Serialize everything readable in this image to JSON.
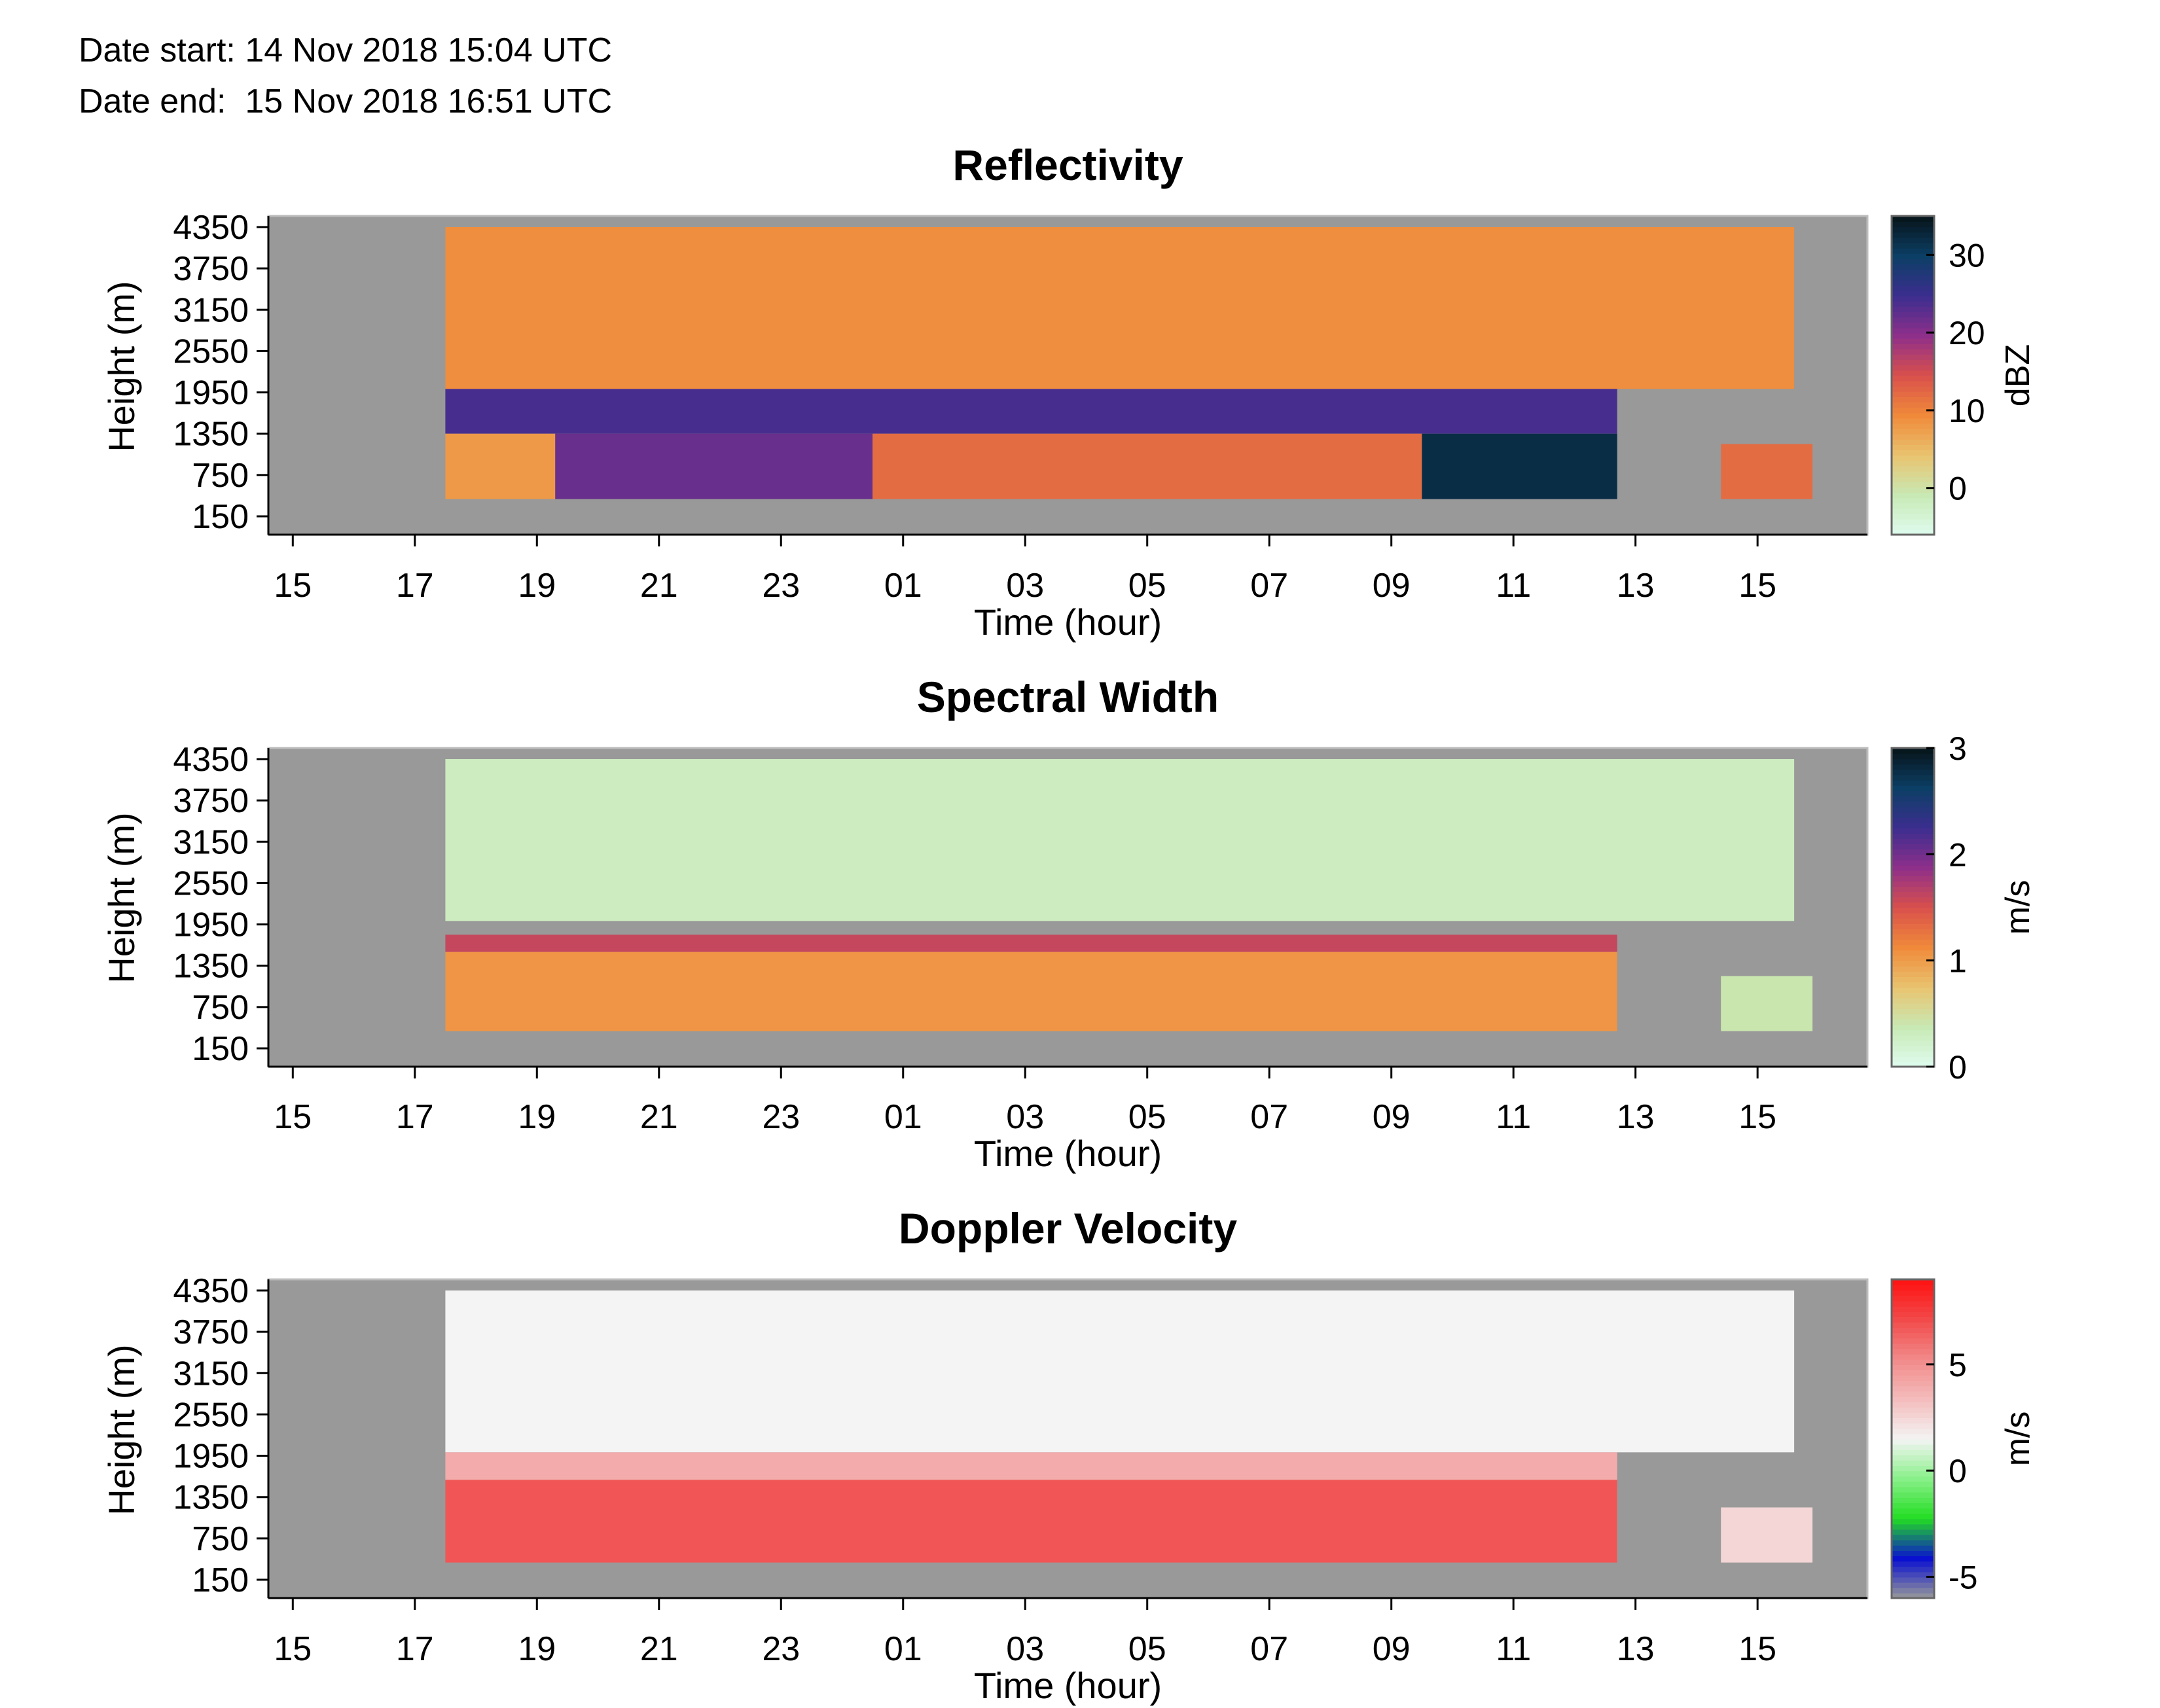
{
  "header": {
    "date_start": "Date start: 14 Nov 2018 15:04 UTC",
    "date_end": "Date end:  15 Nov 2018 16:51 UTC"
  },
  "chart_data": [
    {
      "type": "heatmap",
      "title": "Reflectivity",
      "xlabel": "Time (hour)",
      "ylabel": "Height (m)",
      "x_tick_labels": [
        "15",
        "17",
        "19",
        "21",
        "23",
        "01",
        "03",
        "05",
        "07",
        "09",
        "11",
        "13",
        "15"
      ],
      "y_tick_labels": [
        "4350",
        "3750",
        "3150",
        "2550",
        "1950",
        "1350",
        "750",
        "150"
      ],
      "x_range_hours_since_first_tick": [
        -0.4,
        25.8
      ],
      "ylim": [
        150,
        4350
      ],
      "colorbar": {
        "label": "dBZ",
        "ticks": [
          "30",
          "20",
          "10",
          "0"
        ],
        "tick_values": [
          30,
          20,
          10,
          0
        ],
        "range": [
          -6,
          35
        ],
        "colormap": [
          "#dffcef",
          "#c8e9b4",
          "#e9c36f",
          "#f08a3a",
          "#d9504c",
          "#8e2f8a",
          "#3b2e8f",
          "#0c3f66",
          "#071419"
        ]
      },
      "regions": [
        {
          "name": "echo-upper",
          "x_from": 17.5,
          "x_to": 39.6,
          "y_from": 2000,
          "y_to": 4350,
          "value_dbz": 9
        },
        {
          "name": "echo-mid",
          "x_from": 17.5,
          "x_to": 36.7,
          "y_from": 1350,
          "y_to": 2000,
          "value_dbz": 24
        },
        {
          "name": "echo-low-west",
          "x_from": 17.5,
          "x_to": 19.3,
          "y_from": 400,
          "y_to": 1350,
          "value_dbz": 8
        },
        {
          "name": "echo-low-core",
          "x_from": 19.3,
          "x_to": 24.5,
          "y_from": 400,
          "y_to": 1350,
          "value_dbz": 22
        },
        {
          "name": "echo-low-center",
          "x_from": 24.5,
          "x_to": 33.5,
          "y_from": 400,
          "y_to": 1350,
          "value_dbz": 12
        },
        {
          "name": "echo-low-max",
          "x_from": 33.5,
          "x_to": 36.7,
          "y_from": 400,
          "y_to": 1350,
          "value_dbz": 32
        },
        {
          "name": "echo-tail",
          "x_from": 38.4,
          "x_to": 39.9,
          "y_from": 400,
          "y_to": 1200,
          "value_dbz": 12
        }
      ]
    },
    {
      "type": "heatmap",
      "title": "Spectral Width",
      "xlabel": "Time (hour)",
      "ylabel": "Height (m)",
      "x_tick_labels": [
        "15",
        "17",
        "19",
        "21",
        "23",
        "01",
        "03",
        "05",
        "07",
        "09",
        "11",
        "13",
        "15"
      ],
      "y_tick_labels": [
        "4350",
        "3750",
        "3150",
        "2550",
        "1950",
        "1350",
        "750",
        "150"
      ],
      "x_range_hours_since_first_tick": [
        -0.4,
        25.8
      ],
      "ylim": [
        150,
        4350
      ],
      "colorbar": {
        "label": "m/s",
        "ticks": [
          "3",
          "2",
          "1",
          "0"
        ],
        "tick_values": [
          3,
          2,
          1,
          0
        ],
        "range": [
          0,
          3
        ],
        "colormap": [
          "#dffcef",
          "#c8e9b4",
          "#e9c36f",
          "#f08a3a",
          "#d9504c",
          "#8e2f8a",
          "#3b2e8f",
          "#0c3f66",
          "#071419"
        ]
      },
      "regions": [
        {
          "name": "width-upper",
          "x_from": 17.5,
          "x_to": 39.6,
          "y_from": 2000,
          "y_to": 4350,
          "value_ms": 0.3
        },
        {
          "name": "width-band",
          "x_from": 17.5,
          "x_to": 36.7,
          "y_from": 1550,
          "y_to": 1800,
          "value_ms": 1.6
        },
        {
          "name": "width-low",
          "x_from": 17.5,
          "x_to": 36.7,
          "y_from": 400,
          "y_to": 1550,
          "value_ms": 1.05
        },
        {
          "name": "width-tail",
          "x_from": 38.4,
          "x_to": 39.9,
          "y_from": 400,
          "y_to": 1200,
          "value_ms": 0.4
        }
      ]
    },
    {
      "type": "heatmap",
      "title": "Doppler Velocity",
      "xlabel": "Time (hour)",
      "ylabel": "Height (m)",
      "x_tick_labels": [
        "15",
        "17",
        "19",
        "21",
        "23",
        "01",
        "03",
        "05",
        "07",
        "09",
        "11",
        "13",
        "15"
      ],
      "y_tick_labels": [
        "4350",
        "3750",
        "3150",
        "2550",
        "1950",
        "1350",
        "750",
        "150"
      ],
      "x_range_hours_since_first_tick": [
        -0.4,
        25.8
      ],
      "ylim": [
        150,
        4350
      ],
      "colorbar": {
        "label": "m/s",
        "ticks": [
          "5",
          "0",
          "-5"
        ],
        "tick_values": [
          5,
          0,
          -5
        ],
        "range": [
          -6,
          9
        ],
        "colormap": [
          "#999999",
          "#0a10d0",
          "#22dd22",
          "#88f088",
          "#f4f4f4",
          "#f4bcbc",
          "#f28a8a",
          "#f24a4a",
          "#ff1111"
        ]
      },
      "regions": [
        {
          "name": "velocity-upper",
          "x_from": 17.5,
          "x_to": 39.6,
          "y_from": 2000,
          "y_to": 4350,
          "value_ms": 1.5
        },
        {
          "name": "velocity-mid",
          "x_from": 17.5,
          "x_to": 36.7,
          "y_from": 1600,
          "y_to": 2000,
          "value_ms": 4.0
        },
        {
          "name": "velocity-low",
          "x_from": 17.5,
          "x_to": 36.7,
          "y_from": 400,
          "y_to": 1600,
          "value_ms": 6.8
        },
        {
          "name": "velocity-tail",
          "x_from": 38.4,
          "x_to": 39.9,
          "y_from": 400,
          "y_to": 1200,
          "value_ms": 2.5
        }
      ]
    }
  ]
}
